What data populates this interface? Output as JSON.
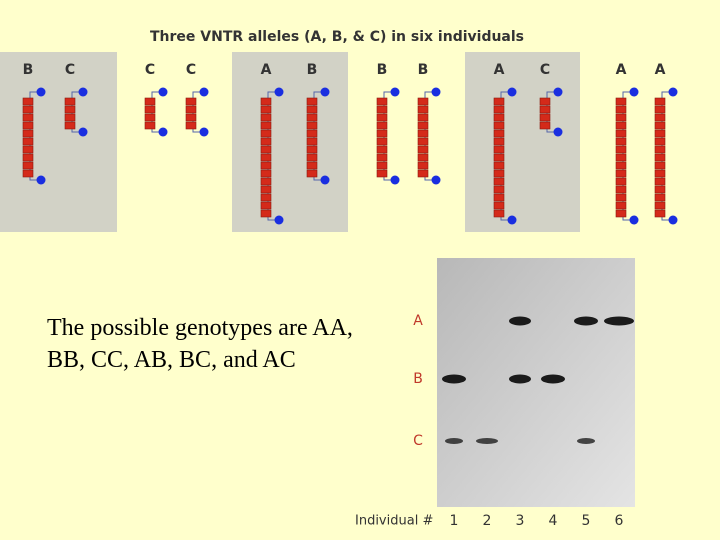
{
  "header": {
    "title": "Three VNTR alleles (A, B, & C) in six individuals"
  },
  "individuals": [
    {
      "alleles": [
        "B",
        "C"
      ]
    },
    {
      "alleles": [
        "C",
        "C"
      ]
    },
    {
      "alleles": [
        "A",
        "B"
      ]
    },
    {
      "alleles": [
        "B",
        "B"
      ]
    },
    {
      "alleles": [
        "A",
        "C"
      ]
    },
    {
      "alleles": [
        "A",
        "A"
      ]
    }
  ],
  "text": "The possible genotypes are AA, BB, CC, AB, BC, and AC",
  "gel": {
    "band_labels": [
      "A",
      "B",
      "C"
    ],
    "axis_label": "Individual #",
    "lanes": [
      "1",
      "2",
      "3",
      "4",
      "5",
      "6"
    ]
  }
}
